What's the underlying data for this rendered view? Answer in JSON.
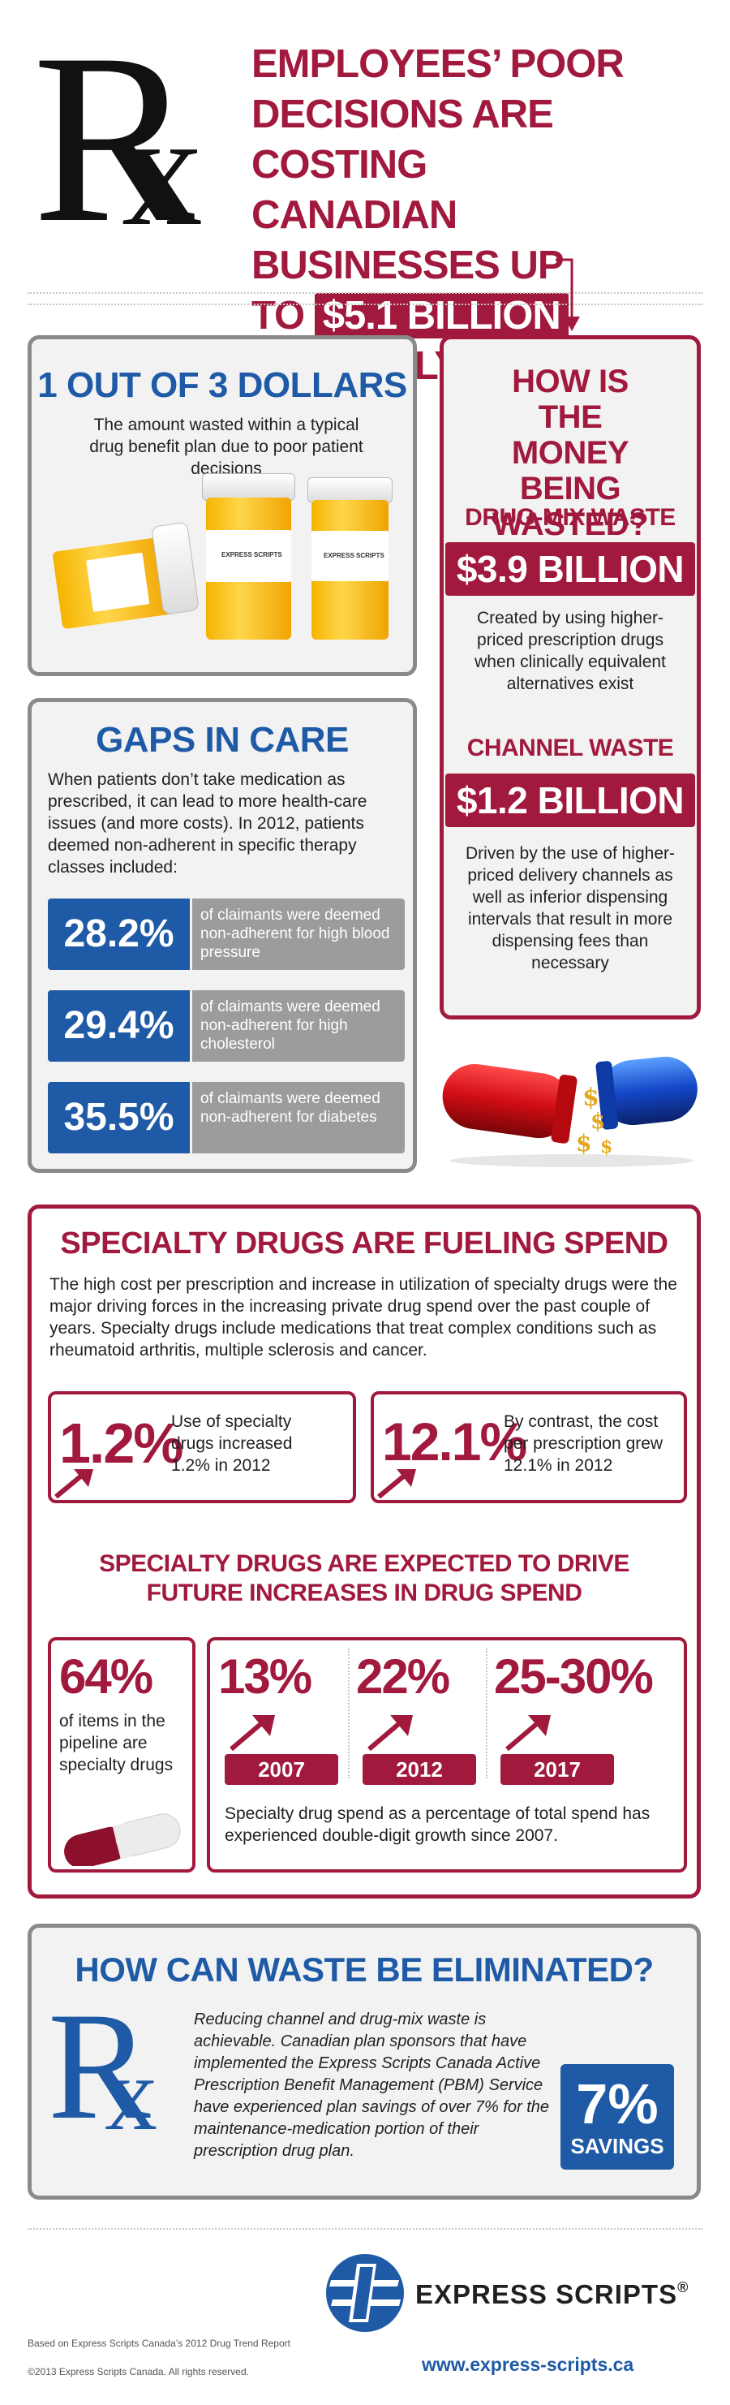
{
  "header": {
    "rx_letters": "Rx",
    "headline_line1": "EMPLOYEES’ POOR",
    "headline_line2": "DECISIONS ARE COSTING",
    "headline_line3": "CANADIAN BUSINESSES UP",
    "headline_to": "TO",
    "headline_amount": "$5.1 BILLION",
    "headline_annually": "ANNUALLY"
  },
  "dollars_panel": {
    "title": "1 OUT OF 3 DOLLARS",
    "text": "The amount wasted within a typical drug benefit plan due to poor patient decisions",
    "bottle_label": "EXPRESS SCRIPTS"
  },
  "waste_panel": {
    "title": "HOW IS THE MONEY BEING WASTED?",
    "drugmix_title": "DRUG-MIX WASTE",
    "drugmix_amount": "$3.9 BILLION",
    "drugmix_text": "Created by using higher-priced prescription drugs when clinically equivalent alternatives exist",
    "channel_title": "CHANNEL WASTE",
    "channel_amount": "$1.2 BILLION",
    "channel_text": "Driven by the use of higher-priced delivery channels as well as inferior dispensing intervals that result in more dispensing fees than necessary"
  },
  "gaps_panel": {
    "title": "GAPS IN CARE",
    "text": "When patients don’t take medication as prescribed, it can lead to more health-care issues (and more costs). In 2012, patients deemed non-adherent in specific therapy classes included:",
    "stats": [
      {
        "value": "28.2%",
        "desc": "of claimants were deemed non-adherent for high blood pressure"
      },
      {
        "value": "29.4%",
        "desc": "of claimants were deemed non-adherent for high cholesterol"
      },
      {
        "value": "35.5%",
        "desc": "of claimants were deemed non-adherent for diabetes"
      }
    ]
  },
  "specialty_panel": {
    "title": "SPECIALTY DRUGS ARE FUELING SPEND",
    "text": "The high cost per prescription and increase in utilization of specialty drugs were the major driving forces in the increasing private drug spend over the past couple of years. Specialty drugs include medications that treat complex conditions such as rheumatoid arthritis, multiple sclerosis and cancer.",
    "stat1_value": "1.2%",
    "stat1_text": "Use of specialty drugs increased 1.2% in 2012",
    "stat2_value": "12.1%",
    "stat2_text": "By contrast, the cost per prescription grew 12.1% in 2012",
    "subtitle_line1": "SPECIALTY DRUGS ARE EXPECTED TO DRIVE",
    "subtitle_line2": "FUTURE INCREASES IN DRUG SPEND",
    "pipeline_value": "64%",
    "pipeline_text": "of items in the pipeline are specialty drugs",
    "years": [
      {
        "value": "13%",
        "year": "2007"
      },
      {
        "value": "22%",
        "year": "2012"
      },
      {
        "value": "25-30%",
        "year": "2017"
      }
    ],
    "growth_text": "Specialty drug spend as a percentage of total spend has experienced double-digit growth since 2007."
  },
  "eliminate_panel": {
    "title": "HOW CAN WASTE BE ELIMINATED?",
    "rx_letters": "Rx",
    "text": "Reducing channel and drug-mix waste is achievable. Canadian plan sponsors that have implemented the Express Scripts Canada Active Prescription Benefit Management (PBM) Service have experienced plan savings of over 7% for the maintenance-medication portion of their prescription drug plan.",
    "savings_value": "7%",
    "savings_label": "SAVINGS"
  },
  "footer": {
    "brand": "EXPRESS SCRIPTS",
    "registered": "®",
    "source": "Based on Express Scripts Canada’s 2012 Drug Trend Report",
    "copyright": "©2013 Express Scripts Canada. All rights reserved.",
    "url": "www.express-scripts.ca"
  },
  "colors": {
    "maroon": "#a1193d",
    "blue": "#1f5aa6",
    "gray_border": "#8a8a8a",
    "panel_bg": "#f2f2f2"
  }
}
